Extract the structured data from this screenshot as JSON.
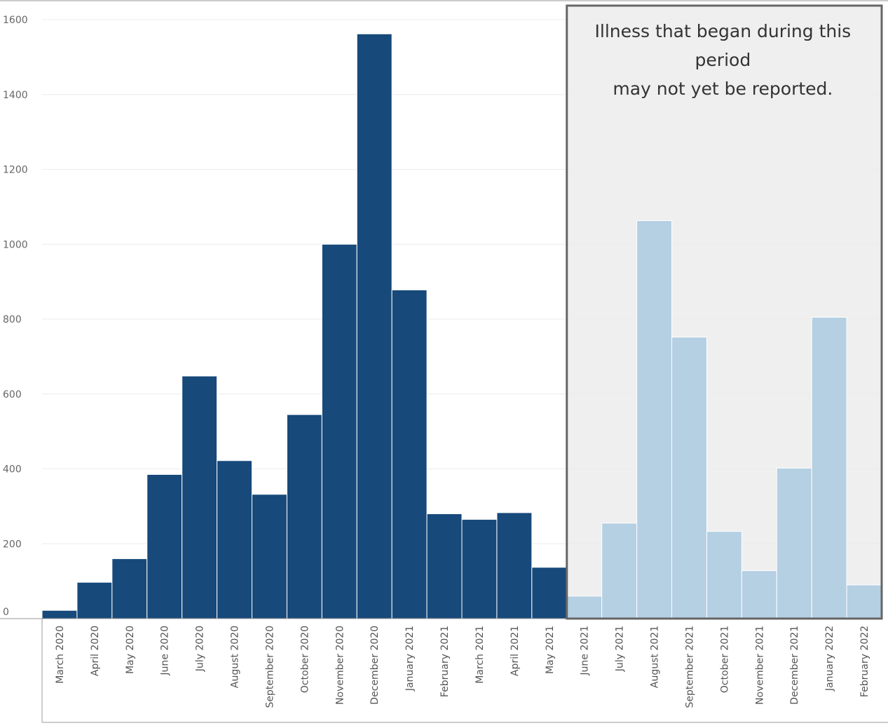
{
  "chart_data": {
    "type": "bar",
    "title": "",
    "xlabel": "",
    "ylabel": "",
    "ylim": [
      0,
      1600
    ],
    "yticks": [
      0,
      200,
      400,
      600,
      800,
      1000,
      1200,
      1400,
      1600
    ],
    "grid": true,
    "categories": [
      "March 2020",
      "April 2020",
      "May 2020",
      "June 2020",
      "July 2020",
      "August 2020",
      "September 2020",
      "October 2020",
      "November 2020",
      "December 2020",
      "January 2021",
      "February 2021",
      "March 2021",
      "April 2021",
      "May 2021",
      "June 2021",
      "July 2021",
      "August 2021",
      "September 2021",
      "October 2021",
      "November 2021",
      "December 2021",
      "January 2022",
      "February 2022"
    ],
    "values": [
      22,
      97,
      160,
      385,
      648,
      422,
      332,
      545,
      1000,
      1562,
      878,
      280,
      265,
      283,
      137,
      60,
      255,
      1063,
      752,
      233,
      128,
      402,
      805,
      90
    ],
    "reporting_lag_start_index": 15,
    "colors": {
      "reported": "#17497a",
      "not_yet_reported": "#b5cfe3",
      "shade": "#efefef",
      "shade_border": "#666666",
      "grid": "#ececec"
    },
    "annotation": {
      "lines": [
        "Illness that began during this",
        "period",
        "may not yet be reported."
      ]
    }
  }
}
